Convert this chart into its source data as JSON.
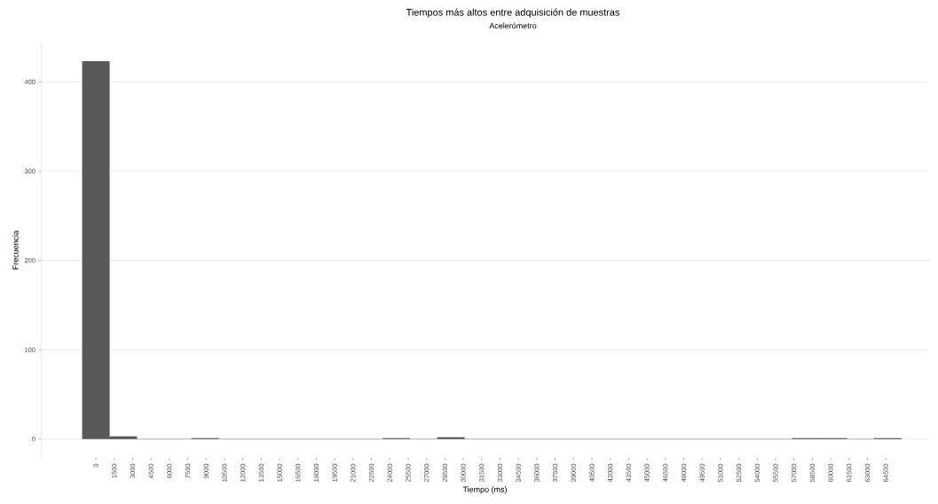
{
  "chart_data": {
    "type": "histogram",
    "title": "Tiempos más altos entre adquisición de muestras",
    "subtitle": "Acelerómetro",
    "xlabel": "Tiempo (ms)",
    "ylabel": "Frecuencia",
    "bins": [
      -1115,
      1115,
      3345,
      5575,
      7805,
      10035,
      12265,
      14495,
      16725,
      18955,
      21185,
      23415,
      25645,
      27875,
      30105,
      32335,
      34565,
      36795,
      39025,
      41255,
      43485,
      45715,
      47945,
      50175,
      52405,
      54635,
      56865,
      59095,
      61325,
      63555,
      65785
    ],
    "values": [
      423,
      3,
      0,
      0,
      1,
      0,
      0,
      0,
      0,
      0,
      0,
      1,
      0,
      2,
      0,
      0,
      0,
      0,
      0,
      0,
      0,
      0,
      0,
      0,
      0,
      0,
      1,
      1,
      0,
      1
    ],
    "color": "#595959",
    "xlim": [
      -4460,
      68000
    ],
    "ylim": [
      -21,
      444
    ],
    "xticks": [
      0,
      1500,
      3000,
      4500,
      6000,
      7500,
      9000,
      10500,
      12000,
      13500,
      15000,
      16500,
      18000,
      19500,
      21000,
      22500,
      24000,
      25500,
      27000,
      28500,
      30000,
      31500,
      33000,
      34500,
      36000,
      37500,
      39000,
      40500,
      42000,
      43500,
      45000,
      46500,
      48000,
      49500,
      51000,
      52500,
      54000,
      55500,
      57000,
      58500,
      60000,
      61500,
      63000,
      64500
    ],
    "yticks": [
      0,
      100,
      200,
      300,
      400
    ],
    "grid": "y"
  }
}
